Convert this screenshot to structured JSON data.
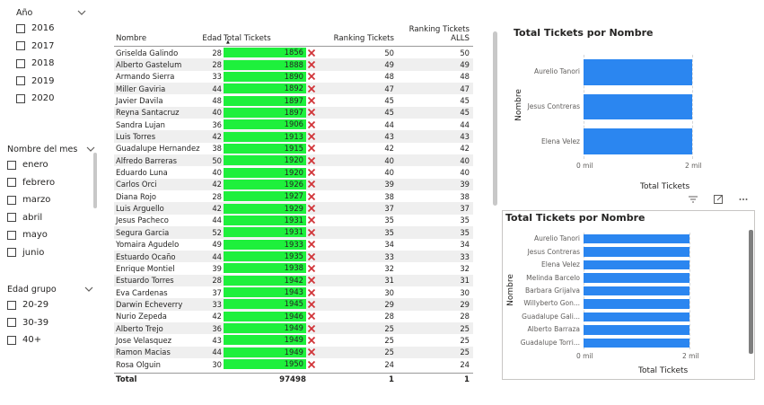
{
  "slicers": {
    "year": {
      "title": "Año",
      "items": [
        "2016",
        "2017",
        "2018",
        "2019",
        "2020"
      ]
    },
    "month": {
      "title": "Nombre del mes",
      "items": [
        "enero",
        "febrero",
        "marzo",
        "abril",
        "mayo",
        "junio"
      ]
    },
    "age_group": {
      "title": "Edad grupo",
      "items": [
        "20-29",
        "30-39",
        "40+"
      ]
    }
  },
  "table": {
    "headers": {
      "name": "Nombre",
      "age": "Edad",
      "total": "Total Tickets",
      "rank": "Ranking Tickets",
      "rank_all": "Ranking Tickets ALLS"
    },
    "rows": [
      {
        "name": "Griselda Galindo",
        "age": "28",
        "total": "1856",
        "rank": "50",
        "rank_all": "50"
      },
      {
        "name": "Alberto Gastelum",
        "age": "28",
        "total": "1888",
        "rank": "49",
        "rank_all": "49"
      },
      {
        "name": "Armando Sierra",
        "age": "33",
        "total": "1890",
        "rank": "48",
        "rank_all": "48"
      },
      {
        "name": "Miller Gaviria",
        "age": "44",
        "total": "1892",
        "rank": "47",
        "rank_all": "47"
      },
      {
        "name": "Javier Davila",
        "age": "48",
        "total": "1897",
        "rank": "45",
        "rank_all": "45"
      },
      {
        "name": "Reyna Santacruz",
        "age": "40",
        "total": "1897",
        "rank": "45",
        "rank_all": "45"
      },
      {
        "name": "Sandra Lujan",
        "age": "36",
        "total": "1906",
        "rank": "44",
        "rank_all": "44"
      },
      {
        "name": "Luis Torres",
        "age": "42",
        "total": "1913",
        "rank": "43",
        "rank_all": "43"
      },
      {
        "name": "Guadalupe Hernandez",
        "age": "38",
        "total": "1915",
        "rank": "42",
        "rank_all": "42"
      },
      {
        "name": "Alfredo Barreras",
        "age": "50",
        "total": "1920",
        "rank": "40",
        "rank_all": "40"
      },
      {
        "name": "Eduardo Luna",
        "age": "40",
        "total": "1920",
        "rank": "40",
        "rank_all": "40"
      },
      {
        "name": "Carlos Orci",
        "age": "42",
        "total": "1926",
        "rank": "39",
        "rank_all": "39"
      },
      {
        "name": "Diana Rojo",
        "age": "28",
        "total": "1927",
        "rank": "38",
        "rank_all": "38"
      },
      {
        "name": "Luis Arguello",
        "age": "42",
        "total": "1929",
        "rank": "37",
        "rank_all": "37"
      },
      {
        "name": "Jesus Pacheco",
        "age": "44",
        "total": "1931",
        "rank": "35",
        "rank_all": "35"
      },
      {
        "name": "Segura Garcia",
        "age": "52",
        "total": "1931",
        "rank": "35",
        "rank_all": "35"
      },
      {
        "name": "Yomaira Agudelo",
        "age": "49",
        "total": "1933",
        "rank": "34",
        "rank_all": "34"
      },
      {
        "name": "Estuardo Ocaño",
        "age": "44",
        "total": "1935",
        "rank": "33",
        "rank_all": "33"
      },
      {
        "name": "Enrique Montiel",
        "age": "39",
        "total": "1938",
        "rank": "32",
        "rank_all": "32"
      },
      {
        "name": "Estuardo Torres",
        "age": "28",
        "total": "1942",
        "rank": "31",
        "rank_all": "31"
      },
      {
        "name": "Eva Cardenas",
        "age": "37",
        "total": "1943",
        "rank": "30",
        "rank_all": "30"
      },
      {
        "name": "Darwin Echeverry",
        "age": "33",
        "total": "1945",
        "rank": "29",
        "rank_all": "29"
      },
      {
        "name": "Nurio Zepeda",
        "age": "42",
        "total": "1946",
        "rank": "28",
        "rank_all": "28"
      },
      {
        "name": "Alberto Trejo",
        "age": "36",
        "total": "1949",
        "rank": "25",
        "rank_all": "25"
      },
      {
        "name": "Jose Velasquez",
        "age": "43",
        "total": "1949",
        "rank": "25",
        "rank_all": "25"
      },
      {
        "name": "Ramon Macias",
        "age": "44",
        "total": "1949",
        "rank": "25",
        "rank_all": "25"
      },
      {
        "name": "Rosa Olguin",
        "age": "30",
        "total": "1950",
        "rank": "24",
        "rank_all": "24"
      }
    ],
    "totals": {
      "label": "Total",
      "total": "97498",
      "rank": "1",
      "rank_all": "1"
    },
    "bar_color": "#1ef03c",
    "kpi_icon": "red-x-icon"
  },
  "chart1": {
    "type": "bar",
    "title": "Total Tickets por Nombre",
    "categories": [
      "Aurelio Tanori",
      "Jesus Contreras",
      "Elena Velez"
    ],
    "values": [
      2000,
      2000,
      2000
    ],
    "xlabel": "Total Tickets",
    "ylabel": "Nombre",
    "ticks": [
      "0 mil",
      "2 mil"
    ],
    "xlim": [
      0,
      2000
    ],
    "color": "#2b86f0"
  },
  "chart2": {
    "type": "bar",
    "title": "Total Tickets por Nombre",
    "categories": [
      "Aurelio Tanori",
      "Jesus Contreras",
      "Elena Velez",
      "Melinda Barcelo",
      "Barbara Grijalva",
      "Willyberto Gon...",
      "Guadalupe Gali...",
      "Alberto Barraza",
      "Guadalupe Torri..."
    ],
    "values": [
      2000,
      2000,
      2000,
      2000,
      2000,
      2000,
      2000,
      2000,
      2000
    ],
    "xlabel": "Total Tickets",
    "ylabel": "Nombre",
    "ticks": [
      "0 mil",
      "2 mil"
    ],
    "xlim": [
      0,
      2000
    ],
    "color": "#2b86f0"
  }
}
